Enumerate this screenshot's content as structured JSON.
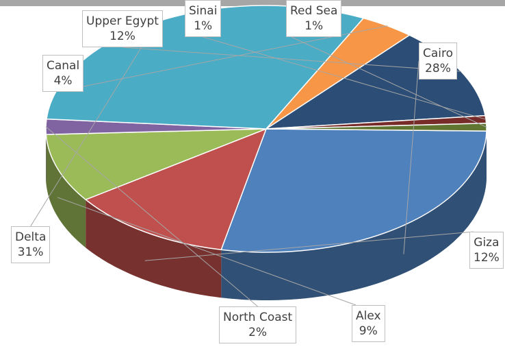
{
  "chart_data": {
    "type": "pie",
    "style": "3d",
    "categories": [
      "Cairo",
      "Giza",
      "Alex",
      "North Coast",
      "Delta",
      "Canal",
      "Upper Egypt",
      "Sinai",
      "Red Sea"
    ],
    "values": [
      28,
      12,
      9,
      2,
      31,
      4,
      12,
      1,
      1
    ],
    "value_labels": [
      "28%",
      "12%",
      "9%",
      "2%",
      "31%",
      "4%",
      "12%",
      "1%",
      "1%"
    ],
    "colors": [
      "#4f81bd",
      "#c0504d",
      "#9bbb59",
      "#8064a2",
      "#4bacc6",
      "#f79646",
      "#2c4d75",
      "#772c2a",
      "#5f7530"
    ],
    "legend": "none",
    "labels": [
      {
        "name": "Cairo",
        "value": "28%"
      },
      {
        "name": "Giza",
        "value": "12%"
      },
      {
        "name": "Alex",
        "value": "9%"
      },
      {
        "name": "North Coast",
        "value": "2%"
      },
      {
        "name": "Delta",
        "value": "31%"
      },
      {
        "name": "Canal",
        "value": "4%"
      },
      {
        "name": "Upper Egypt",
        "value": "12%"
      },
      {
        "name": "Sinai",
        "value": "1%"
      },
      {
        "name": "Red Sea",
        "value": "1%"
      }
    ]
  }
}
